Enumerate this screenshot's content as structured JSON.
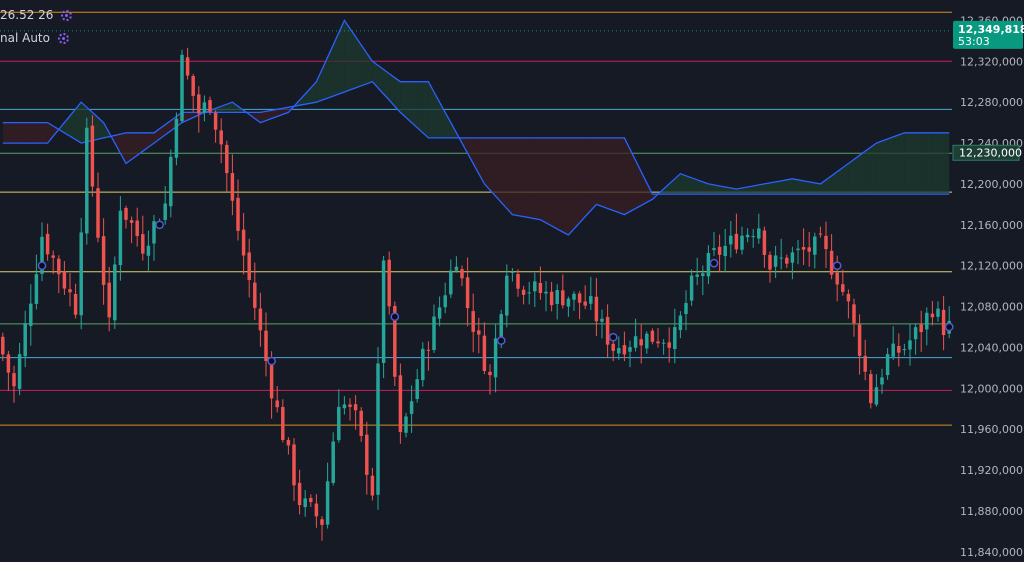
{
  "legend": [
    {
      "text": "26.52 26",
      "icon": "gear-icon"
    },
    {
      "text": "nal Auto",
      "icon": "gear-icon"
    }
  ],
  "colors": {
    "background": "#161a25",
    "bull": "#26a69a",
    "bear": "#ef5350",
    "cloud_line": "#2962ff",
    "cloud_bull_fill": "#1e3a2f",
    "cloud_bear_fill": "#3a1f24",
    "price_badge": "#089981",
    "gear": "#8e5cf7"
  },
  "chart_data": {
    "type": "candlestick",
    "ylim": [
      11830000,
      12380000
    ],
    "y_ticks": [
      {
        "value": 12360000,
        "label": "12,360,000"
      },
      {
        "value": 12320000,
        "label": "12,320,000"
      },
      {
        "value": 12280000,
        "label": "12,280,000"
      },
      {
        "value": 12240000,
        "label": "12,240,000"
      },
      {
        "value": 12200000,
        "label": "12,200,000"
      },
      {
        "value": 12160000,
        "label": "12,160,000"
      },
      {
        "value": 12120000,
        "label": "12,120,000"
      },
      {
        "value": 12080000,
        "label": "12,080,000"
      },
      {
        "value": 12040000,
        "label": "12,040,000"
      },
      {
        "value": 12000000,
        "label": "12,000,000"
      },
      {
        "value": 11960000,
        "label": "11,960,000"
      },
      {
        "value": 11920000,
        "label": "11,920,000"
      },
      {
        "value": 11880000,
        "label": "11,880,000"
      },
      {
        "value": 11840000,
        "label": "11,840,000"
      }
    ],
    "current_price": {
      "value": 12349818,
      "label": "12,349,818",
      "countdown": "53:03"
    },
    "marker_price": {
      "value": 12230000,
      "label": "12,230,000"
    },
    "horizontal_levels": [
      {
        "value": 12368000,
        "color": "#f7a21b"
      },
      {
        "value": 12320000,
        "color": "#e91e63"
      },
      {
        "value": 12273000,
        "color": "#4fc3f7"
      },
      {
        "value": 12230000,
        "color": "#66bb6a"
      },
      {
        "value": 12192000,
        "color": "#fff176"
      },
      {
        "value": 12114000,
        "color": "#fff176"
      },
      {
        "value": 12063000,
        "color": "#66bb6a"
      },
      {
        "value": 12030000,
        "color": "#4fc3f7"
      },
      {
        "value": 11998000,
        "color": "#e91e63"
      },
      {
        "value": 11964000,
        "color": "#f7a21b"
      }
    ],
    "candle_count": 170,
    "key_points": [
      [
        0,
        12050000
      ],
      [
        3,
        12000000
      ],
      [
        8,
        12150000
      ],
      [
        14,
        12080000
      ],
      [
        16,
        12245000
      ],
      [
        20,
        12060000
      ],
      [
        22,
        12180000
      ],
      [
        26,
        12140000
      ],
      [
        30,
        12180000
      ],
      [
        33,
        12320000
      ],
      [
        36,
        12270000
      ],
      [
        38,
        12280000
      ],
      [
        40,
        12240000
      ],
      [
        42,
        12180000
      ],
      [
        46,
        12080000
      ],
      [
        49,
        12000000
      ],
      [
        54,
        11890000
      ],
      [
        58,
        11870000
      ],
      [
        61,
        11990000
      ],
      [
        64,
        11970000
      ],
      [
        67,
        11900000
      ],
      [
        69,
        12130000
      ],
      [
        72,
        11950000
      ],
      [
        76,
        12030000
      ],
      [
        79,
        12080000
      ],
      [
        82,
        12130000
      ],
      [
        84,
        12080000
      ],
      [
        88,
        12010000
      ],
      [
        91,
        12120000
      ],
      [
        94,
        12100000
      ],
      [
        99,
        12090000
      ],
      [
        102,
        12090000
      ],
      [
        106,
        12080000
      ],
      [
        110,
        12040000
      ],
      [
        115,
        12050000
      ],
      [
        118,
        12050000
      ],
      [
        121,
        12050000
      ],
      [
        124,
        12100000
      ],
      [
        128,
        12130000
      ],
      [
        133,
        12150000
      ],
      [
        136,
        12160000
      ],
      [
        138,
        12120000
      ],
      [
        142,
        12130000
      ],
      [
        147,
        12140000
      ],
      [
        150,
        12110000
      ],
      [
        152,
        12080000
      ],
      [
        154,
        12040000
      ],
      [
        156,
        11990000
      ],
      [
        159,
        12030000
      ],
      [
        162,
        12040000
      ],
      [
        165,
        12060000
      ],
      [
        167,
        12080000
      ],
      [
        169,
        12060000
      ]
    ],
    "cloud": {
      "span_a": [
        [
          0,
          12240000
        ],
        [
          8,
          12240000
        ],
        [
          14,
          12280000
        ],
        [
          18,
          12260000
        ],
        [
          22,
          12220000
        ],
        [
          27,
          12240000
        ],
        [
          32,
          12260000
        ],
        [
          36,
          12270000
        ],
        [
          41,
          12280000
        ],
        [
          46,
          12260000
        ],
        [
          51,
          12270000
        ],
        [
          56,
          12300000
        ],
        [
          61,
          12360000
        ],
        [
          66,
          12320000
        ],
        [
          71,
          12300000
        ],
        [
          76,
          12300000
        ],
        [
          81,
          12250000
        ],
        [
          86,
          12200000
        ],
        [
          91,
          12170000
        ],
        [
          96,
          12165000
        ],
        [
          101,
          12150000
        ],
        [
          106,
          12180000
        ],
        [
          111,
          12170000
        ],
        [
          116,
          12185000
        ],
        [
          121,
          12210000
        ],
        [
          126,
          12200000
        ],
        [
          131,
          12195000
        ],
        [
          136,
          12200000
        ],
        [
          141,
          12205000
        ],
        [
          146,
          12200000
        ],
        [
          151,
          12220000
        ],
        [
          156,
          12240000
        ],
        [
          161,
          12250000
        ],
        [
          166,
          12250000
        ],
        [
          169,
          12250000
        ]
      ],
      "span_b": [
        [
          0,
          12260000
        ],
        [
          8,
          12260000
        ],
        [
          14,
          12240000
        ],
        [
          18,
          12245000
        ],
        [
          22,
          12250000
        ],
        [
          27,
          12250000
        ],
        [
          32,
          12270000
        ],
        [
          36,
          12270000
        ],
        [
          41,
          12270000
        ],
        [
          46,
          12270000
        ],
        [
          51,
          12275000
        ],
        [
          56,
          12280000
        ],
        [
          61,
          12290000
        ],
        [
          66,
          12300000
        ],
        [
          71,
          12270000
        ],
        [
          76,
          12245000
        ],
        [
          81,
          12245000
        ],
        [
          86,
          12245000
        ],
        [
          91,
          12245000
        ],
        [
          96,
          12245000
        ],
        [
          101,
          12245000
        ],
        [
          106,
          12245000
        ],
        [
          111,
          12245000
        ],
        [
          116,
          12190000
        ],
        [
          121,
          12190000
        ],
        [
          126,
          12190000
        ],
        [
          131,
          12190000
        ],
        [
          136,
          12190000
        ],
        [
          141,
          12190000
        ],
        [
          146,
          12190000
        ],
        [
          151,
          12190000
        ],
        [
          156,
          12190000
        ],
        [
          161,
          12190000
        ],
        [
          166,
          12190000
        ],
        [
          169,
          12190000
        ]
      ]
    },
    "circle_markers": [
      7,
      28,
      48,
      70,
      89,
      109,
      127,
      149,
      169
    ]
  }
}
